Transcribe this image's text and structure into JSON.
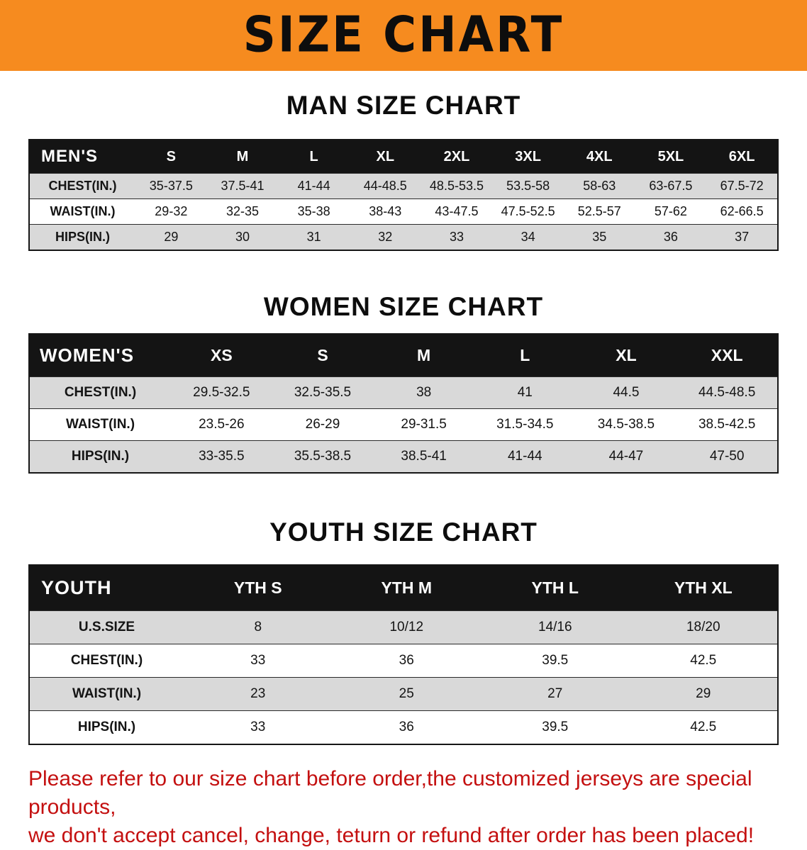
{
  "banner": {
    "title": "SIZE CHART",
    "bg_color": "#f68b1f",
    "text_color": "#0d0d0d"
  },
  "colors": {
    "table_header_bg": "#141414",
    "table_header_text": "#ffffff",
    "row_alt_gray": "#d9d9d9",
    "note_red": "#c41010"
  },
  "sections": [
    {
      "heading": "MAN SIZE CHART",
      "table": {
        "corner": "MEN'S",
        "columns": [
          "S",
          "M",
          "L",
          "XL",
          "2XL",
          "3XL",
          "4XL",
          "5XL",
          "6XL"
        ],
        "rows": [
          {
            "label": "CHEST(IN.)",
            "values": [
              "35-37.5",
              "37.5-41",
              "41-44",
              "44-48.5",
              "48.5-53.5",
              "53.5-58",
              "58-63",
              "63-67.5",
              "67.5-72"
            ]
          },
          {
            "label": "WAIST(IN.)",
            "values": [
              "29-32",
              "32-35",
              "35-38",
              "38-43",
              "43-47.5",
              "47.5-52.5",
              "52.5-57",
              "57-62",
              "62-66.5"
            ]
          },
          {
            "label": "HIPS(IN.)",
            "values": [
              "29",
              "30",
              "31",
              "32",
              "33",
              "34",
              "35",
              "36",
              "37"
            ]
          }
        ]
      }
    },
    {
      "heading": "WOMEN SIZE CHART",
      "table": {
        "corner": "WOMEN'S",
        "columns": [
          "XS",
          "S",
          "M",
          "L",
          "XL",
          "XXL"
        ],
        "rows": [
          {
            "label": "CHEST(IN.)",
            "values": [
              "29.5-32.5",
              "32.5-35.5",
              "38",
              "41",
              "44.5",
              "44.5-48.5"
            ]
          },
          {
            "label": "WAIST(IN.)",
            "values": [
              "23.5-26",
              "26-29",
              "29-31.5",
              "31.5-34.5",
              "34.5-38.5",
              "38.5-42.5"
            ]
          },
          {
            "label": "HIPS(IN.)",
            "values": [
              "33-35.5",
              "35.5-38.5",
              "38.5-41",
              "41-44",
              "44-47",
              "47-50"
            ]
          }
        ]
      }
    },
    {
      "heading": "YOUTH SIZE CHART",
      "table": {
        "corner": "YOUTH",
        "columns": [
          "YTH S",
          "YTH M",
          "YTH L",
          "YTH XL"
        ],
        "rows": [
          {
            "label": "U.S.SIZE",
            "values": [
              "8",
              "10/12",
              "14/16",
              "18/20"
            ]
          },
          {
            "label": "CHEST(IN.)",
            "values": [
              "33",
              "36",
              "39.5",
              "42.5"
            ]
          },
          {
            "label": "WAIST(IN.)",
            "values": [
              "23",
              "25",
              "27",
              "29"
            ]
          },
          {
            "label": "HIPS(IN.)",
            "values": [
              "33",
              "36",
              "39.5",
              "42.5"
            ]
          }
        ]
      }
    }
  ],
  "note": {
    "lines": [
      "Please refer to our size chart before order,the customized jerseys are special products,",
      "we don't accept cancel, change, teturn or refund after order has been placed!"
    ]
  }
}
